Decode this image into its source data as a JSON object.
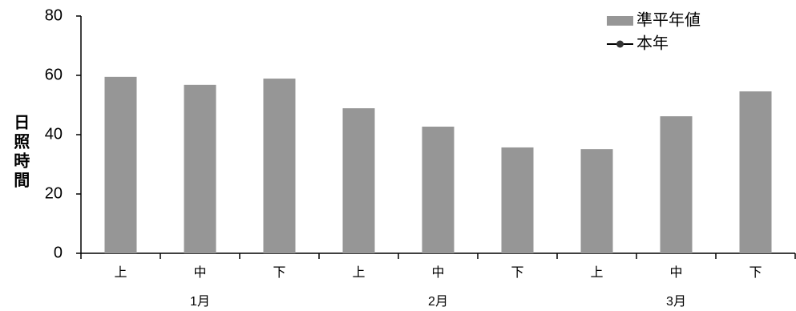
{
  "chart_data": {
    "type": "bar",
    "y_label": "日照時間",
    "categories": [
      "上",
      "中",
      "下",
      "上",
      "中",
      "下",
      "上",
      "中",
      "下"
    ],
    "groups": [
      "1月",
      "2月",
      "3月"
    ],
    "series": [
      {
        "name": "準平年値",
        "type": "bar",
        "color": "#969696",
        "values": [
          59.5,
          56.8,
          58.9,
          48.9,
          42.7,
          35.7,
          35.1,
          46.2,
          54.6
        ]
      },
      {
        "name": "本年",
        "type": "line",
        "color": "#000000",
        "values": [
          null,
          null,
          null,
          null,
          null,
          null,
          null,
          null,
          null
        ]
      }
    ],
    "ylim": [
      0,
      80
    ],
    "yticks": [
      0,
      20,
      40,
      60,
      80
    ],
    "grid": false,
    "legend": "top-right"
  }
}
